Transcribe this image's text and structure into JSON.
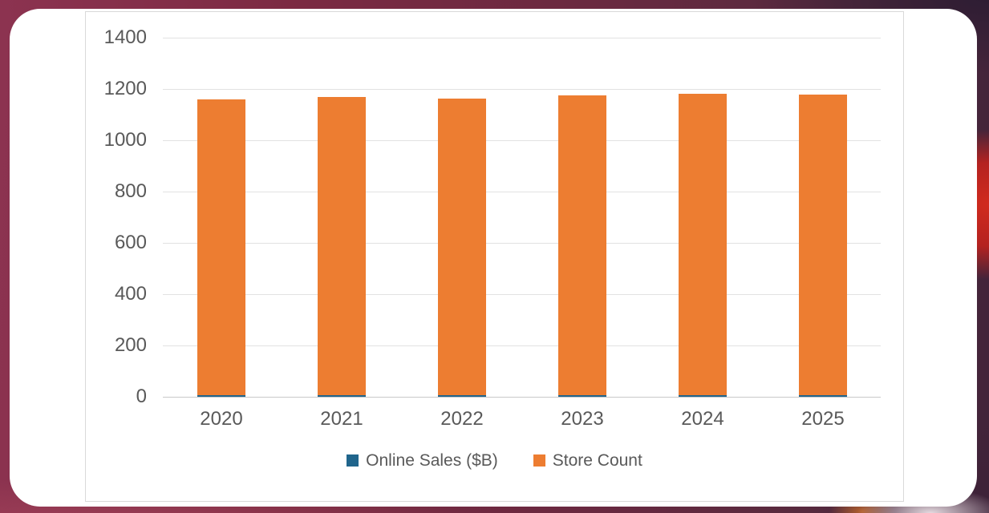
{
  "chart_data": {
    "type": "bar",
    "title": "",
    "categories": [
      "2020",
      "2021",
      "2022",
      "2023",
      "2024",
      "2025"
    ],
    "series": [
      {
        "name": "Online Sales ($B)",
        "color": "#20658c",
        "values": [
          5,
          5,
          5,
          6,
          6,
          6
        ]
      },
      {
        "name": "Store Count",
        "color": "#ed7d31",
        "values": [
          1160,
          1168,
          1163,
          1175,
          1181,
          1179
        ]
      }
    ],
    "xlabel": "",
    "ylabel": "",
    "ylim": [
      0,
      1400
    ],
    "y_ticks": [
      0,
      200,
      400,
      600,
      800,
      1000,
      1200,
      1400
    ],
    "grid": true,
    "legend_position": "bottom",
    "bar_style": "overlapped"
  },
  "colors": {
    "axis_text": "#595959",
    "gridline": "#e2e2e2",
    "card_background": "#ffffff",
    "backdrop_maroon": "#7b2a42",
    "backdrop_red": "#c0231f"
  }
}
